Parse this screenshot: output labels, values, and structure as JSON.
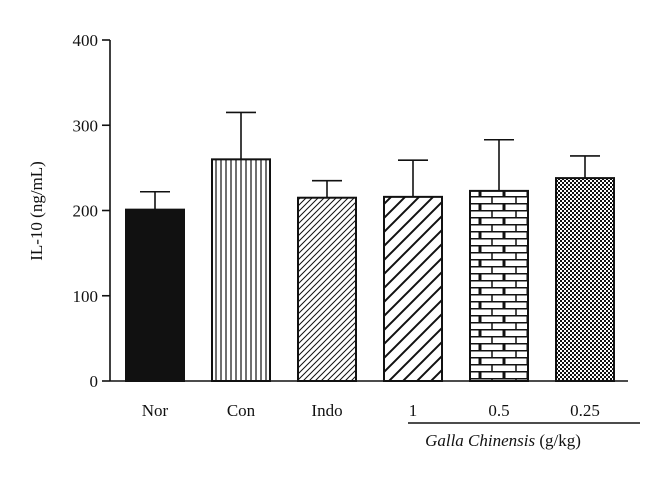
{
  "chart_data": {
    "type": "bar",
    "ylabel": "IL-10 (ng/mL)",
    "ylim": [
      0,
      400
    ],
    "yticks": [
      0,
      100,
      200,
      300,
      400
    ],
    "categories": [
      "Nor",
      "Con",
      "Indo",
      "1",
      "0.5",
      "0.25"
    ],
    "values": [
      201,
      260,
      215,
      216,
      223,
      238
    ],
    "error_upper": [
      222,
      315,
      235,
      259,
      283,
      264
    ],
    "fill_patterns": [
      "solid",
      "vertical-lines",
      "fine-diagonal",
      "wide-diagonal",
      "brick",
      "checker"
    ],
    "group_label": {
      "name_italic": "Galla Chinensis",
      "unit": " (g/kg)",
      "categories": [
        "1",
        "0.5",
        "0.25"
      ]
    },
    "grid": false,
    "legend": "none",
    "colors": {
      "bar_stroke": "#111111",
      "bar_fill_solid": "#111111",
      "background": "#ffffff"
    }
  }
}
